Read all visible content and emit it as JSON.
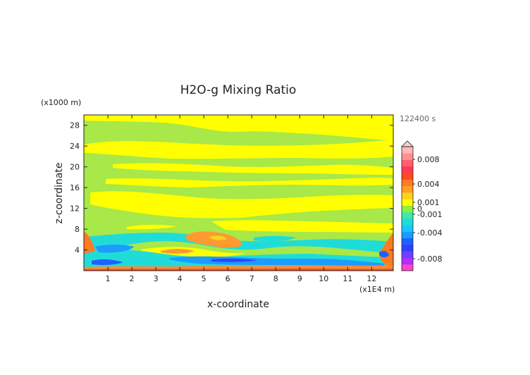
{
  "chart_data": {
    "type": "heatmap",
    "title": "H2O-g Mixing Ratio",
    "xlabel": "x-coordinate",
    "ylabel": "z-coordinate",
    "x_unit": "(x1E4 m)",
    "y_unit": "(x1000 m)",
    "time_label": "122400 s",
    "xlim": [
      0,
      12.9
    ],
    "ylim": [
      0,
      30
    ],
    "x_ticks": [
      "1",
      "2",
      "3",
      "4",
      "5",
      "6",
      "7",
      "8",
      "9",
      "10",
      "11",
      "12"
    ],
    "y_ticks": [
      "4",
      "8",
      "12",
      "16",
      "20",
      "24",
      "28"
    ],
    "colorbar": {
      "labels": [
        "0.008",
        "0.004",
        "0.001",
        "0",
        "-0.001",
        "-0.004",
        "-0.008"
      ],
      "label_values": [
        0.008,
        0.004,
        0.001,
        0,
        -0.001,
        -0.004,
        -0.008
      ],
      "colors": [
        "#ff44c8",
        "#b030ff",
        "#7040ff",
        "#3040ff",
        "#2060ff",
        "#1c9cff",
        "#18c8ff",
        "#20dcd8",
        "#40e8a8",
        "#8cf040",
        "#ffff00",
        "#ffd020",
        "#ffa020",
        "#ff7a20",
        "#ff4a20",
        "#ff3a50",
        "#ff6070",
        "#ff9090",
        "#ffb8b8"
      ]
    },
    "field_zones": [
      {
        "z_from": 26,
        "z_to": 30,
        "value": "yellow"
      },
      {
        "z_from": 22,
        "z_to": 26,
        "value": "mixed yellow/green bands"
      },
      {
        "z_from": 8,
        "z_to": 22,
        "value": "alternating green and yellow layers"
      },
      {
        "z_from": 2,
        "z_to": 8,
        "value": "cyan/blue negative anomalies with orange patches"
      },
      {
        "z_from": 0,
        "z_to": 2,
        "value": "orange/red surface layer"
      }
    ]
  }
}
